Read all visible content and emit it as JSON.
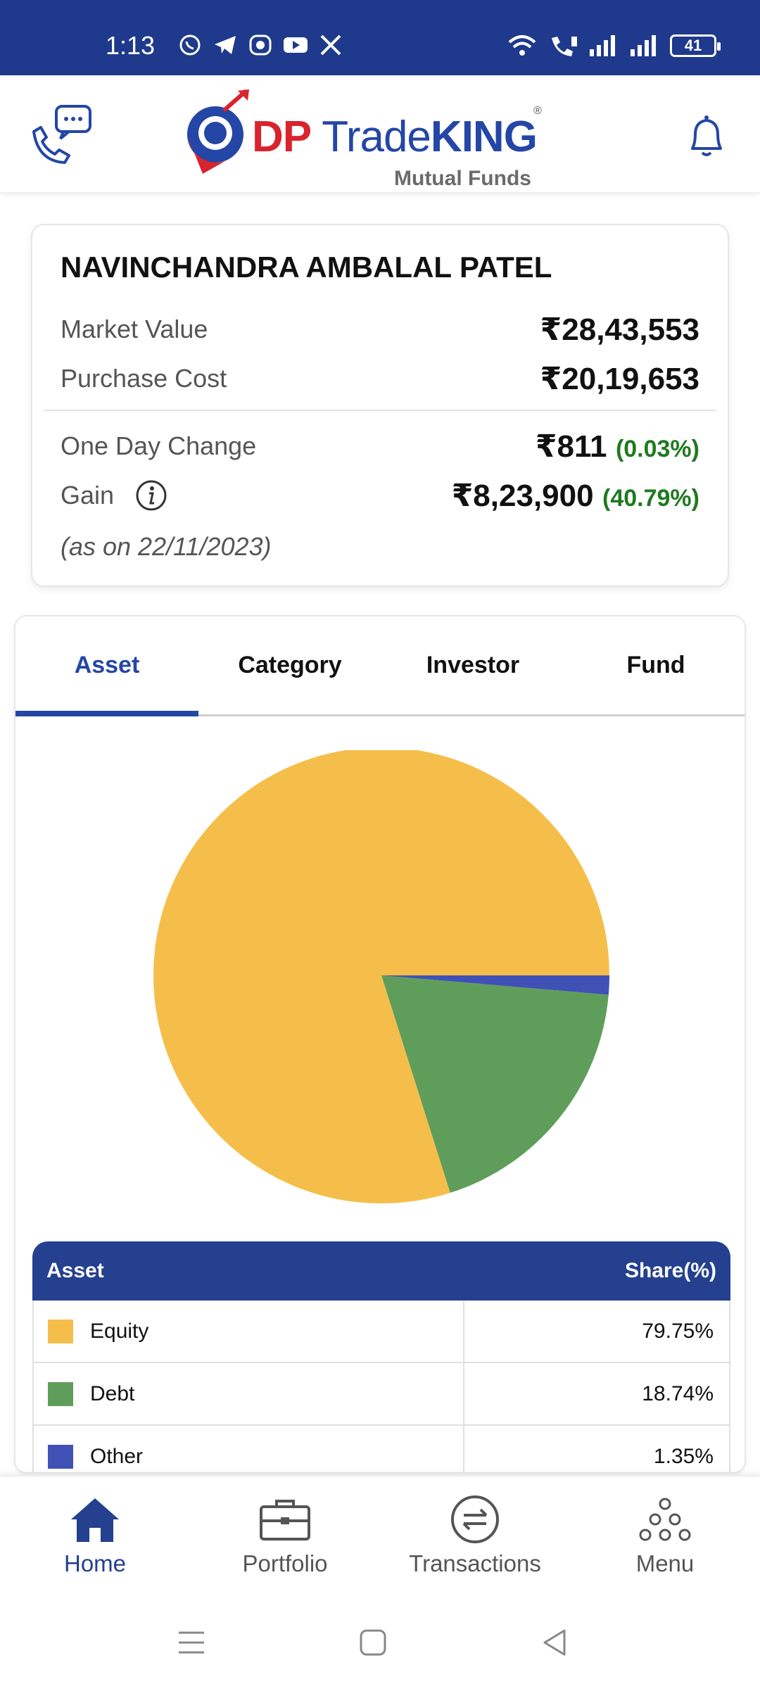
{
  "status_bar": {
    "time": "1:13",
    "battery": "41",
    "app_icons": [
      "whatsapp-icon",
      "telegram-icon",
      "messenger-icon",
      "youtube-icon",
      "x-icon"
    ]
  },
  "header": {
    "brand_dp": "DP",
    "brand_trade": "Trade",
    "brand_king": "KING",
    "registered": "®",
    "tagline": "Mutual Funds"
  },
  "summary": {
    "investor_name": "NAVINCHANDRA AMBALAL PATEL",
    "market_value_label": "Market Value",
    "market_value": "₹28,43,553",
    "purchase_cost_label": "Purchase Cost",
    "purchase_cost": "₹20,19,653",
    "one_day_change_label": "One Day Change",
    "one_day_change": "₹811",
    "one_day_change_pct": "(0.03%)",
    "gain_label": "Gain",
    "gain": "₹8,23,900",
    "gain_pct": "(40.79%)",
    "as_on": "(as on 22/11/2023)"
  },
  "tabs": [
    {
      "label": "Asset",
      "active": true
    },
    {
      "label": "Category",
      "active": false
    },
    {
      "label": "Investor",
      "active": false
    },
    {
      "label": "Fund",
      "active": false
    }
  ],
  "chart_data": {
    "type": "pie",
    "categories": [
      "Equity",
      "Debt",
      "Other"
    ],
    "values": [
      79.75,
      18.74,
      1.35
    ],
    "colors": [
      "#f5be4b",
      "#5f9e5a",
      "#3f51b5"
    ],
    "start_angle_deg": 90,
    "direction": "counterclockwise"
  },
  "allocation_table": {
    "header_asset": "Asset",
    "header_share": "Share(%)",
    "rows": [
      {
        "asset": "Equity",
        "share": "79.75%",
        "color": "#f5be4b"
      },
      {
        "asset": "Debt",
        "share": "18.74%",
        "color": "#5f9e5a"
      },
      {
        "asset": "Other",
        "share": "1.35%",
        "color": "#3f51b5"
      }
    ]
  },
  "bottom_nav": {
    "items": [
      {
        "label": "Home",
        "icon": "home-icon",
        "active": true
      },
      {
        "label": "Portfolio",
        "icon": "briefcase-icon",
        "active": false
      },
      {
        "label": "Transactions",
        "icon": "exchange-icon",
        "active": false
      },
      {
        "label": "Menu",
        "icon": "menu-dots-icon",
        "active": false
      }
    ]
  },
  "colors": {
    "primary": "#24408f",
    "status_bar": "#1f3a8c",
    "positive": "#1f7a1f",
    "brand_red": "#d9232d"
  }
}
